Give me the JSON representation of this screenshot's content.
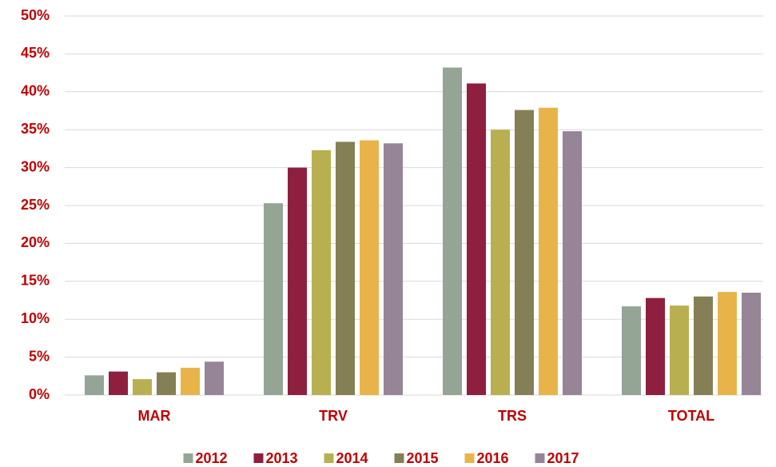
{
  "chart_data": {
    "type": "bar",
    "categories": [
      "MAR",
      "TRV",
      "TRS",
      "TOTAL"
    ],
    "series": [
      {
        "name": "2012",
        "color": "#94a596",
        "values": [
          2.6,
          25.3,
          43.2,
          11.7
        ]
      },
      {
        "name": "2013",
        "color": "#8e1f3f",
        "values": [
          3.1,
          30.0,
          41.1,
          12.8
        ]
      },
      {
        "name": "2014",
        "color": "#b8b050",
        "values": [
          2.1,
          32.3,
          35.0,
          11.8
        ]
      },
      {
        "name": "2015",
        "color": "#847f55",
        "values": [
          3.0,
          33.4,
          37.6,
          13.0
        ]
      },
      {
        "name": "2016",
        "color": "#e8b44a",
        "values": [
          3.6,
          33.6,
          37.9,
          13.6
        ]
      },
      {
        "name": "2017",
        "color": "#968497",
        "values": [
          4.4,
          33.2,
          34.8,
          13.5
        ]
      }
    ],
    "ylim": [
      0,
      50
    ],
    "yticks": [
      {
        "value": 0,
        "label": "0%"
      },
      {
        "value": 5,
        "label": "5%"
      },
      {
        "value": 10,
        "label": "10%"
      },
      {
        "value": 15,
        "label": "15%"
      },
      {
        "value": 20,
        "label": "20%"
      },
      {
        "value": 25,
        "label": "25%"
      },
      {
        "value": 30,
        "label": "30%"
      },
      {
        "value": 35,
        "label": "35%"
      },
      {
        "value": 40,
        "label": "40%"
      },
      {
        "value": 45,
        "label": "45%"
      },
      {
        "value": 50,
        "label": "50%"
      }
    ],
    "grid": true,
    "legend": "bottom"
  }
}
